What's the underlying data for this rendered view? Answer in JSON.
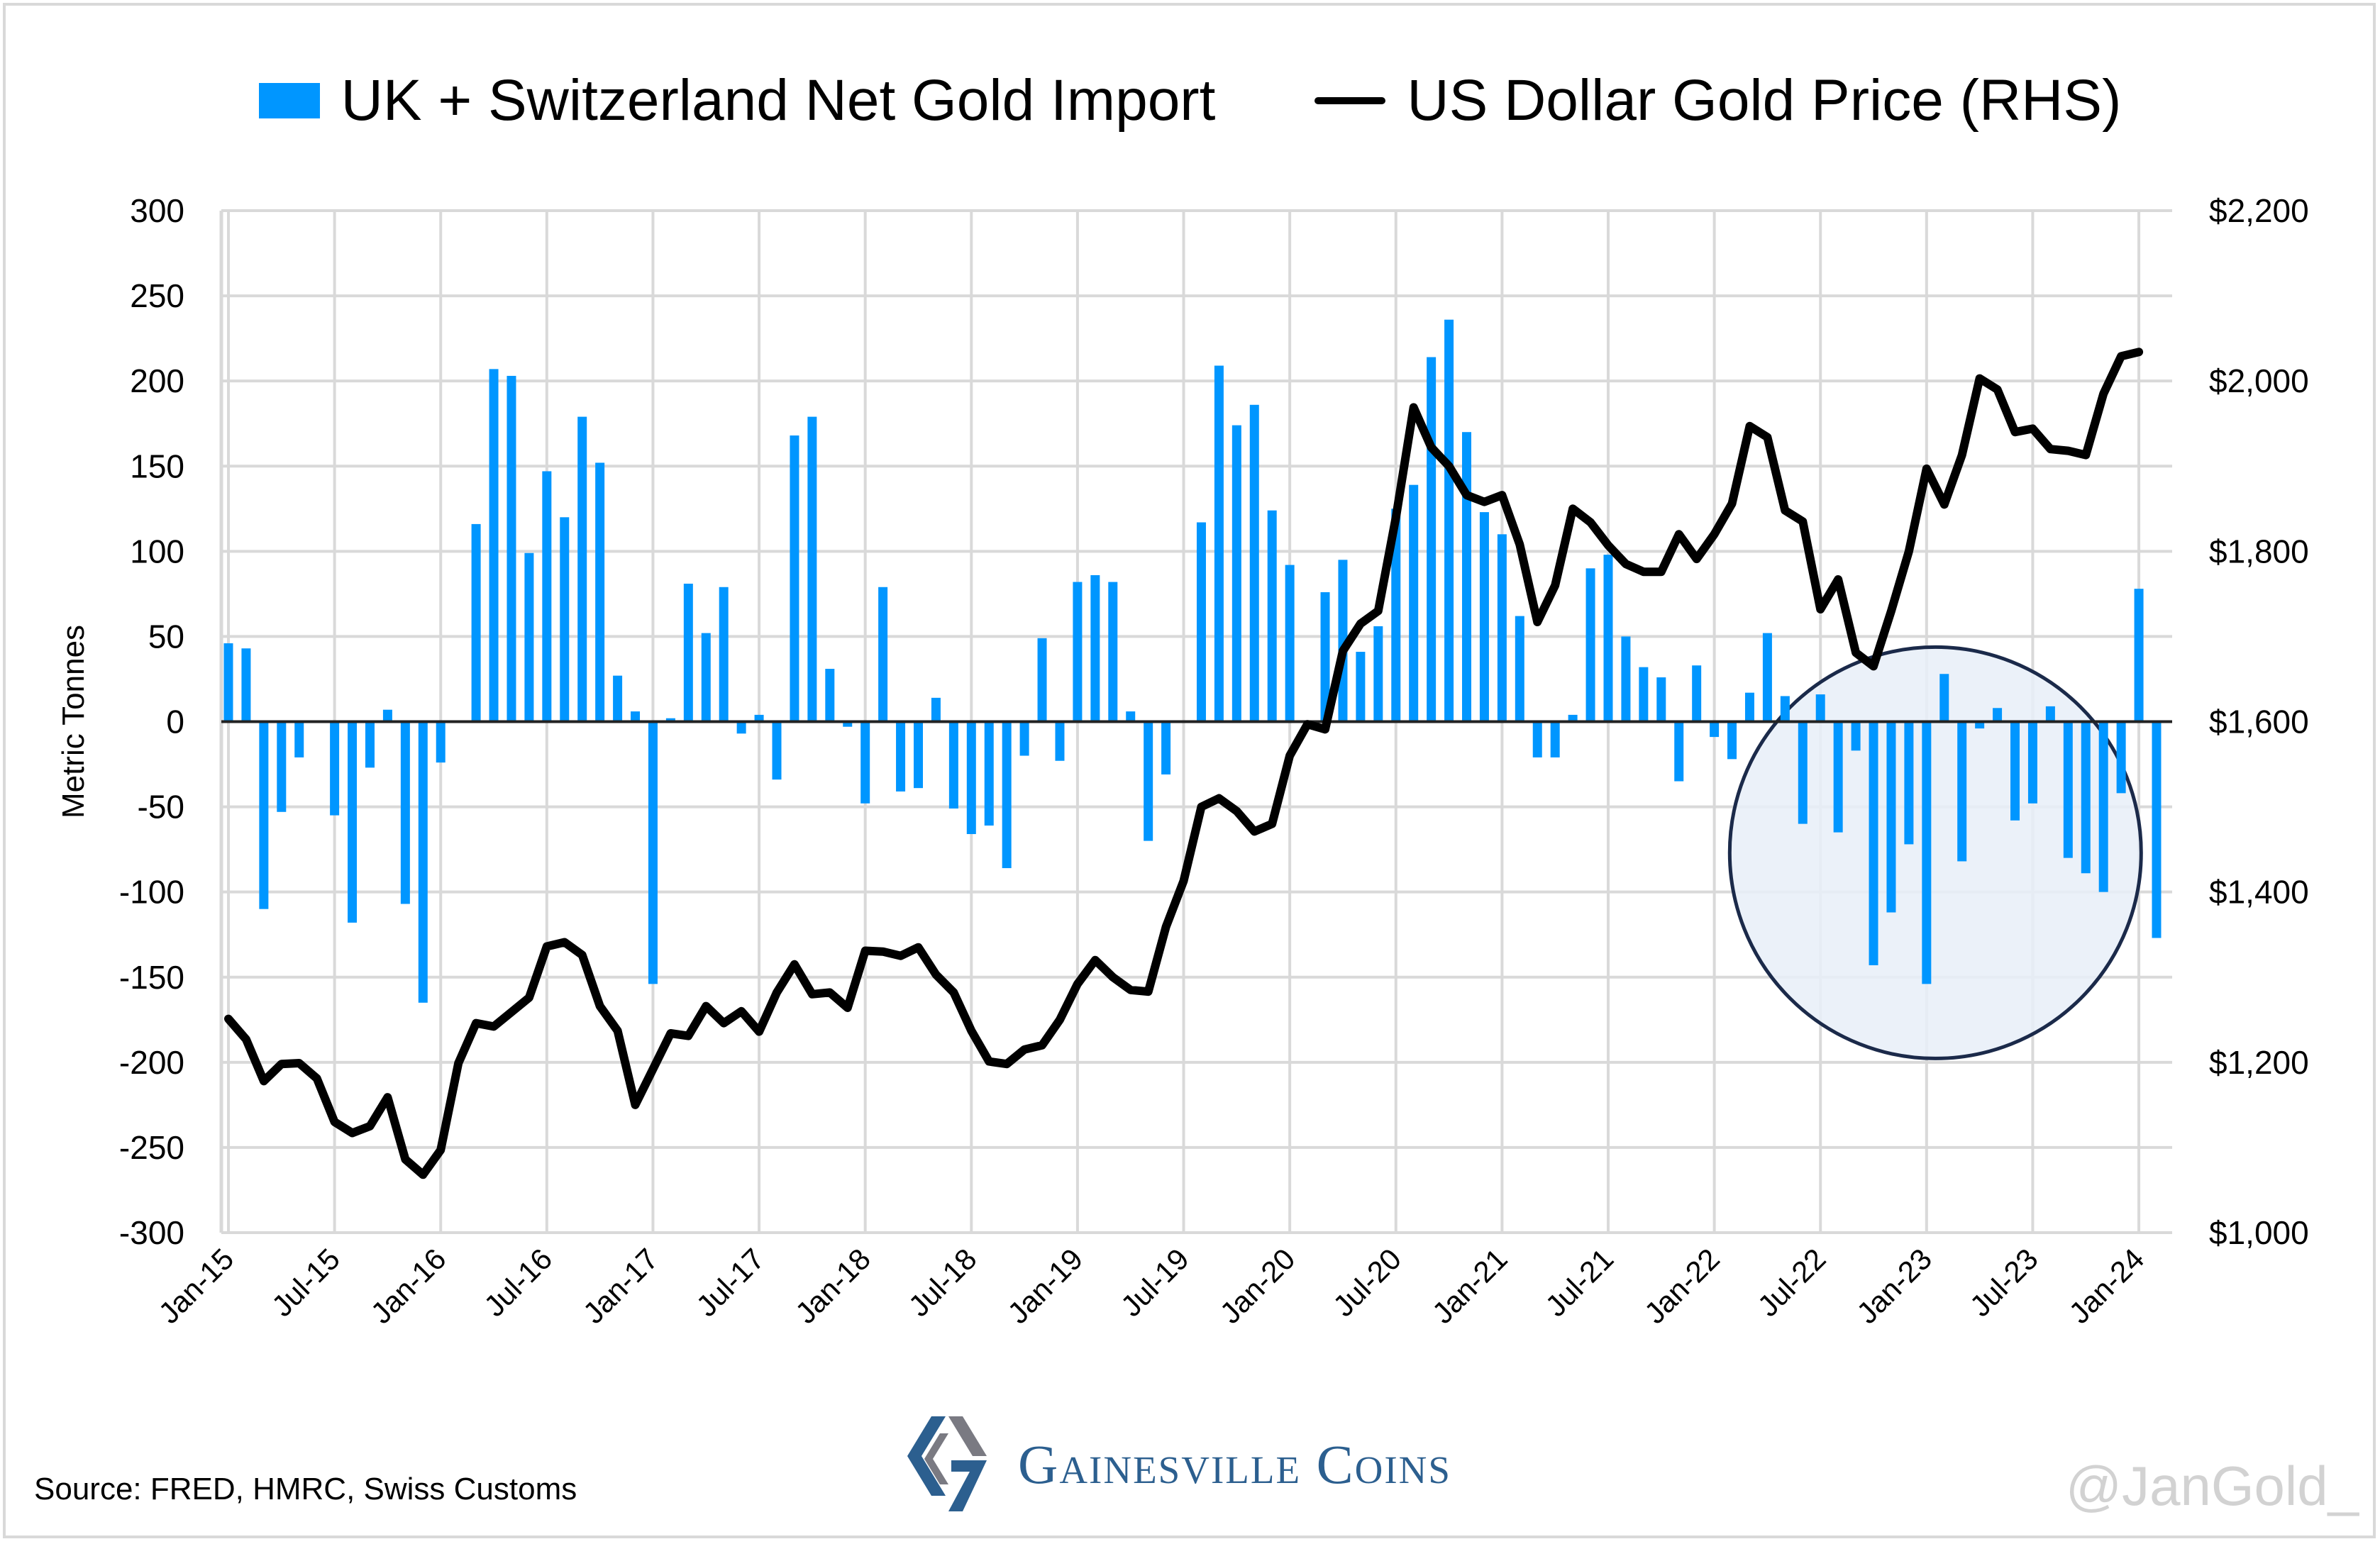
{
  "chart_data": {
    "type": "bar+line",
    "title": "",
    "legend": [
      {
        "name": "UK + Switzerland Net Gold Import",
        "type": "bar",
        "color": "#0096ff"
      },
      {
        "name": "US Dollar Gold Price (RHS)",
        "type": "line",
        "color": "#000000"
      }
    ],
    "legend_position": "top-center",
    "ylabel": "Metric Tonnes",
    "ylim": [
      -300,
      300
    ],
    "yticks": [
      "300",
      "250",
      "200",
      "150",
      "100",
      "50",
      "0",
      "-50",
      "-100",
      "-150",
      "-200",
      "-250",
      "-300"
    ],
    "y2lim": [
      1000,
      2200
    ],
    "y2ticks": [
      "$2,200",
      "$2,000",
      "$1,800",
      "$1,600",
      "$1,400",
      "$1,200",
      "$1,000"
    ],
    "xticks": [
      "Jan-15",
      "Jul-15",
      "Jan-16",
      "Jul-16",
      "Jan-17",
      "Jul-17",
      "Jan-18",
      "Jul-18",
      "Jan-19",
      "Jul-19",
      "Jan-20",
      "Jul-20",
      "Jan-21",
      "Jul-21",
      "Jan-22",
      "Jul-22",
      "Jan-23",
      "Jul-23",
      "Jan-24"
    ],
    "grid": true,
    "x_start": "Jan-15",
    "x_frequency": "monthly",
    "series": [
      {
        "name": "UK + Switzerland Net Gold Import",
        "axis": "left",
        "values": [
          46,
          43,
          -110,
          -53,
          -21,
          0,
          -55,
          -118,
          -27,
          7,
          -107,
          -165,
          -24,
          0,
          116,
          207,
          203,
          99,
          147,
          120,
          179,
          152,
          27,
          6,
          -154,
          2,
          81,
          52,
          79,
          -7,
          4,
          -34,
          168,
          179,
          31,
          -3,
          -48,
          79,
          -41,
          -39,
          14,
          -51,
          -66,
          -61,
          -86,
          -20,
          49,
          -23,
          82,
          86,
          82,
          6,
          -70,
          -31,
          0,
          117,
          209,
          174,
          186,
          124,
          92,
          0,
          76,
          95,
          41,
          56,
          125,
          139,
          214,
          236,
          170,
          123,
          110,
          62,
          -21,
          -21,
          4,
          90,
          98,
          50,
          32,
          26,
          -35,
          33,
          -9,
          -22,
          17,
          52,
          15,
          -60,
          16,
          -65,
          -17,
          -143,
          -112,
          -72,
          -154,
          28,
          -82,
          -4,
          8,
          -58,
          -48,
          9,
          -80,
          -89,
          -100,
          -42,
          78,
          -127
        ],
        "color": "#0096ff"
      },
      {
        "name": "US Dollar Gold Price (RHS)",
        "axis": "right",
        "values": [
          1251,
          1227,
          1178,
          1198,
          1199,
          1181,
          1130,
          1117,
          1125,
          1159,
          1086,
          1068,
          1097,
          1199,
          1246,
          1242,
          1259,
          1276,
          1336,
          1341,
          1326,
          1266,
          1237,
          1150,
          1192,
          1234,
          1231,
          1266,
          1246,
          1260,
          1236,
          1282,
          1315,
          1280,
          1282,
          1264,
          1331,
          1330,
          1325,
          1335,
          1303,
          1282,
          1237,
          1201,
          1198,
          1215,
          1220,
          1250,
          1292,
          1320,
          1300,
          1285,
          1283,
          1359,
          1413,
          1500,
          1510,
          1495,
          1471,
          1480,
          1560,
          1597,
          1591,
          1683,
          1715,
          1730,
          1840,
          1969,
          1922,
          1900,
          1866,
          1858,
          1866,
          1808,
          1717,
          1760,
          1850,
          1834,
          1807,
          1785,
          1776,
          1776,
          1820,
          1791,
          1820,
          1856,
          1947,
          1934,
          1848,
          1835,
          1732,
          1767,
          1681,
          1665,
          1730,
          1800,
          1897,
          1855,
          1913,
          2003,
          1990,
          1940,
          1944,
          1920,
          1918,
          1913,
          1985,
          2029,
          2034
        ]
      }
    ],
    "annotations": [
      {
        "type": "circle",
        "description": "Highlight of 2022–2024 net outflows",
        "fill": "#e8eef8",
        "stroke": "#1b2a4a"
      }
    ]
  },
  "footer": {
    "source": "Source: FRED, HMRC, Swiss Customs",
    "brand": "Gainesville Coins",
    "watermark": "@JanGold_"
  }
}
